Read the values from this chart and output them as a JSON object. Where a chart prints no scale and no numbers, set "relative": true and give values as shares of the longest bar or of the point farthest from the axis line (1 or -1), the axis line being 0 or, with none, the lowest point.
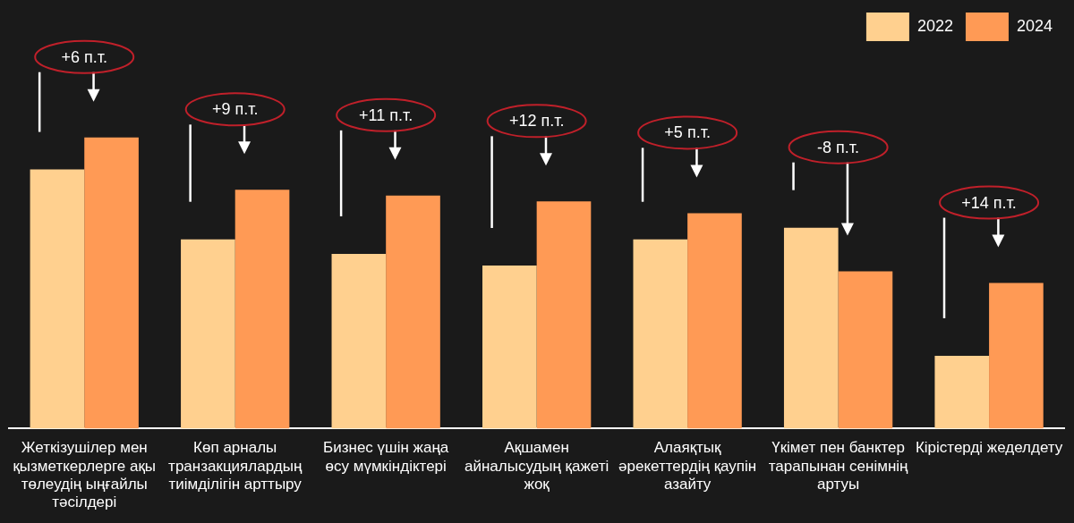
{
  "chart_data": {
    "type": "bar",
    "relative": true,
    "legend": "top right",
    "categories": [
      "Жеткізушілер мен қызметкерлерге ақы төлеудің ыңғайлы тәсілдері",
      "Көп арналы транзакциялардың тиімділігін арттыру",
      "Бизнес үшін жаңа өсу мүмкіндіктері",
      "Ақшамен айналысудың қажеті жоқ",
      "Алаяқтық әрекеттердің қаупін азайту",
      "Үкімет пен банктер тарапынан сенімнің артуы",
      "Кірістерді жеделдету"
    ],
    "series": [
      {
        "name": "2022",
        "color": "#ffd08f",
        "values": [
          0.89,
          0.65,
          0.6,
          0.56,
          0.65,
          0.69,
          0.25
        ]
      },
      {
        "name": "2024",
        "color": "#ff9a55",
        "values": [
          1,
          0.82,
          0.8,
          0.78,
          0.74,
          0.54,
          0.5
        ]
      }
    ],
    "annotations": [
      "+6 п.т.",
      "+9 п.т.",
      "+11 п.т.",
      "+12 п.т.",
      "+5 п.т.",
      "-8 п.т.",
      "+14 п.т."
    ]
  }
}
